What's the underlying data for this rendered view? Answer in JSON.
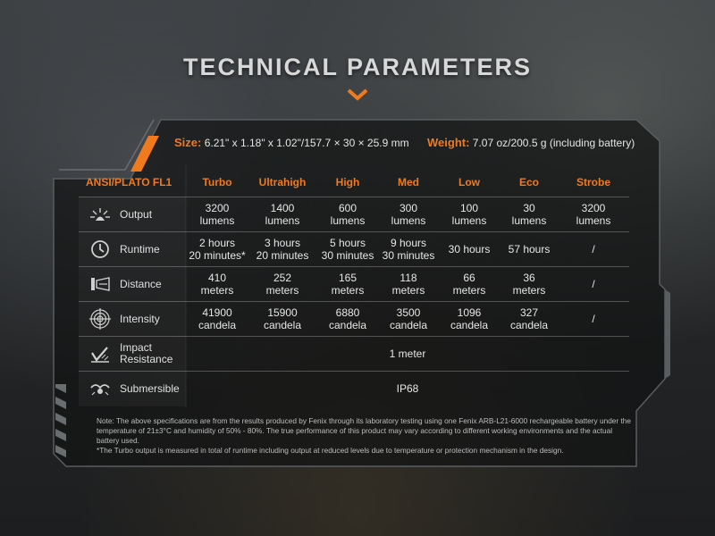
{
  "title": "TECHNICAL PARAMETERS",
  "specs": {
    "size_label": "Size:",
    "size_value": "6.21\" x 1.18\" x 1.02\"/157.7 × 30 × 25.9 mm",
    "weight_label": "Weight:",
    "weight_value": "7.07 oz/200.5 g (including battery)"
  },
  "table": {
    "header_label": "ANSI/PLATO FL1",
    "modes": [
      "Turbo",
      "Ultrahigh",
      "High",
      "Med",
      "Low",
      "Eco",
      "Strobe"
    ],
    "rows": [
      {
        "label": "Output",
        "icon": "output-icon",
        "cells": [
          [
            "3200",
            "lumens"
          ],
          [
            "1400",
            "lumens"
          ],
          [
            "600",
            "lumens"
          ],
          [
            "300",
            "lumens"
          ],
          [
            "100",
            "lumens"
          ],
          [
            "30",
            "lumens"
          ],
          [
            "3200",
            "lumens"
          ]
        ]
      },
      {
        "label": "Runtime",
        "icon": "clock-icon",
        "cells": [
          [
            "2 hours",
            "20 minutes*"
          ],
          [
            "3 hours",
            "20 minutes"
          ],
          [
            "5 hours",
            "30 minutes"
          ],
          [
            "9 hours",
            "30 minutes"
          ],
          [
            "30 hours",
            ""
          ],
          [
            "57 hours",
            ""
          ],
          [
            "/",
            ""
          ]
        ]
      },
      {
        "label": "Distance",
        "icon": "distance-icon",
        "cells": [
          [
            "410",
            "meters"
          ],
          [
            "252",
            "meters"
          ],
          [
            "165",
            "meters"
          ],
          [
            "118",
            "meters"
          ],
          [
            "66",
            "meters"
          ],
          [
            "36",
            "meters"
          ],
          [
            "/",
            ""
          ]
        ]
      },
      {
        "label": "Intensity",
        "icon": "crosshair-icon",
        "cells": [
          [
            "41900",
            "candela"
          ],
          [
            "15900",
            "candela"
          ],
          [
            "6880",
            "candela"
          ],
          [
            "3500",
            "candela"
          ],
          [
            "1096",
            "candela"
          ],
          [
            "327",
            "candela"
          ],
          [
            "/",
            ""
          ]
        ]
      }
    ],
    "impact": {
      "label_line1": "Impact",
      "label_line2": "Resistance",
      "icon": "impact-icon",
      "value": "1 meter"
    },
    "submersible": {
      "label": "Submersible",
      "icon": "submersible-icon",
      "value": "IP68"
    }
  },
  "note": {
    "line1": "Note: The above specifications are from the results produced by Fenix through its laboratory testing using one Fenix ARB-L21-6000 rechargeable battery under the temperature of 21±3°C and humidity of 50% - 80%. The true performance of this product may vary according to different working environments and the actual battery used.",
    "line2": "*The Turbo output is measured in total of runtime including output at reduced levels due to temperature or protection mechanism in the design."
  },
  "colors": {
    "accent": "#f07a1c",
    "text": "#e6e6e6"
  }
}
